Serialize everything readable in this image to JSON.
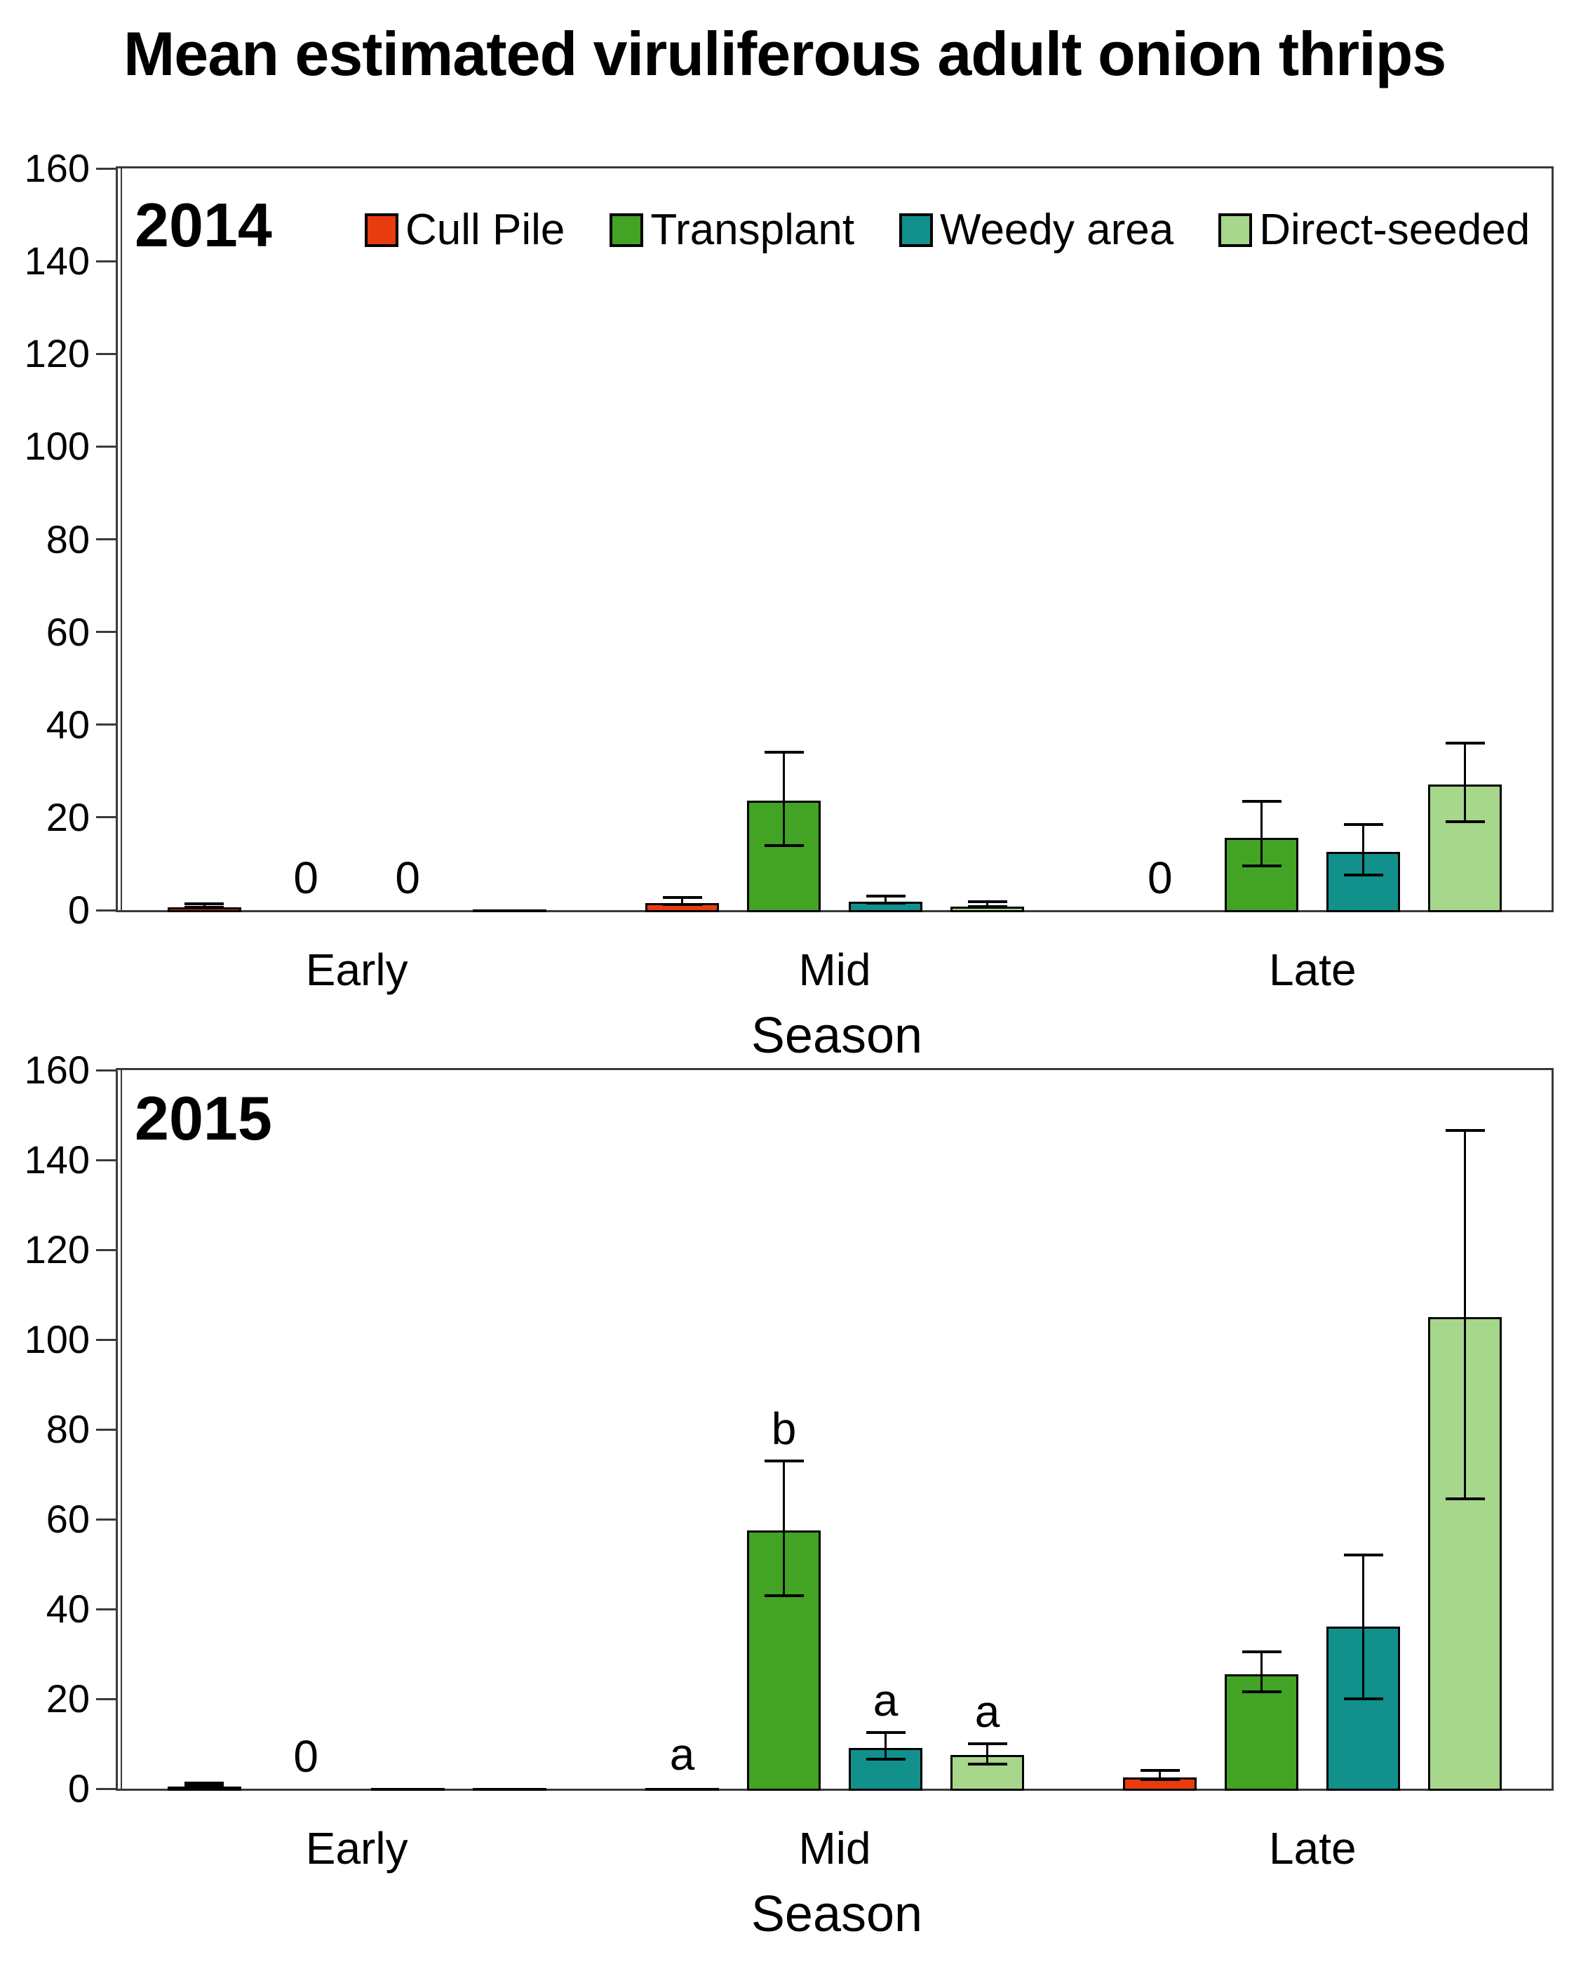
{
  "title": "Mean estimated viruliferous adult onion thrips",
  "legend": [
    {
      "label": "Cull Pile",
      "color": "#E83C0F"
    },
    {
      "label": "Transplant",
      "color": "#43A325"
    },
    {
      "label": "Weedy area",
      "color": "#11908C"
    },
    {
      "label": "Direct-seeded",
      "color": "#A7D78A"
    }
  ],
  "axis": {
    "ylim": [
      0,
      160
    ],
    "yticks": [
      0,
      20,
      40,
      60,
      80,
      100,
      120,
      140,
      160
    ],
    "categories": [
      "Early",
      "Mid",
      "Late"
    ],
    "xlabel": "Season"
  },
  "chart_data": [
    {
      "type": "bar",
      "panel_label": "2014",
      "xlabel": "Season",
      "ylim": [
        0,
        160
      ],
      "categories": [
        "Early",
        "Mid",
        "Late"
      ],
      "series": [
        {
          "name": "Cull Pile",
          "color": "#E83C0F",
          "values": [
            1,
            2,
            0
          ],
          "err_low": [
            0.6,
            1.2,
            null
          ],
          "err_high": [
            1.4,
            2.8,
            null
          ],
          "notes": [
            null,
            null,
            "0"
          ]
        },
        {
          "name": "Transplant",
          "color": "#43A325",
          "values": [
            0,
            24,
            16
          ],
          "err_low": [
            null,
            14,
            9.5
          ],
          "err_high": [
            null,
            34,
            23.5
          ],
          "notes": [
            "0",
            null,
            null
          ]
        },
        {
          "name": "Weedy area",
          "color": "#11908C",
          "values": [
            0,
            2.2,
            13
          ],
          "err_low": [
            null,
            1.5,
            7.5
          ],
          "err_high": [
            null,
            3,
            18.5
          ],
          "notes": [
            "0",
            null,
            null
          ]
        },
        {
          "name": "Direct-seeded",
          "color": "#A7D78A",
          "values": [
            0.4,
            1.2,
            27.5
          ],
          "err_low": [
            null,
            0.7,
            19
          ],
          "err_high": [
            null,
            1.8,
            36
          ],
          "notes": [
            null,
            null,
            null
          ]
        }
      ]
    },
    {
      "type": "bar",
      "panel_label": "2015",
      "xlabel": "Season",
      "ylim": [
        0,
        160
      ],
      "categories": [
        "Early",
        "Mid",
        "Late"
      ],
      "series": [
        {
          "name": "Cull Pile",
          "color": "#E83C0F",
          "values": [
            1,
            0.5,
            3
          ],
          "err_low": [
            0.7,
            null,
            2
          ],
          "err_high": [
            1.3,
            null,
            4
          ],
          "notes": [
            null,
            "a",
            null
          ]
        },
        {
          "name": "Transplant",
          "color": "#43A325",
          "values": [
            0,
            58,
            26
          ],
          "err_low": [
            null,
            43,
            21.5
          ],
          "err_high": [
            null,
            73,
            30.5
          ],
          "notes": [
            "0",
            "b",
            null
          ]
        },
        {
          "name": "Weedy area",
          "color": "#11908C",
          "values": [
            0.4,
            9.5,
            36.5
          ],
          "err_low": [
            null,
            6.5,
            20
          ],
          "err_high": [
            null,
            12.5,
            52
          ],
          "notes": [
            null,
            "a",
            null
          ]
        },
        {
          "name": "Direct-seeded",
          "color": "#A7D78A",
          "values": [
            0.3,
            8,
            105.5
          ],
          "err_low": [
            null,
            5.5,
            64.5
          ],
          "err_high": [
            null,
            10,
            146.5
          ],
          "notes": [
            null,
            "a",
            null
          ]
        }
      ]
    }
  ]
}
